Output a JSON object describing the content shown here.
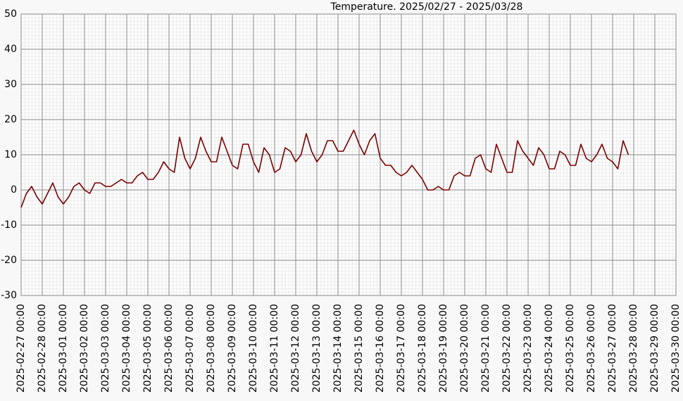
{
  "chart_data": {
    "type": "line",
    "title": "Temperature. 2025/02/27 - 2025/03/28",
    "x": [
      "2025-02-27 00:00",
      "2025-02-27 06:00",
      "2025-02-27 12:00",
      "2025-02-27 18:00",
      "2025-02-28 00:00",
      "2025-02-28 06:00",
      "2025-02-28 12:00",
      "2025-02-28 18:00",
      "2025-03-01 00:00",
      "2025-03-01 06:00",
      "2025-03-01 12:00",
      "2025-03-01 18:00",
      "2025-03-02 00:00",
      "2025-03-02 06:00",
      "2025-03-02 12:00",
      "2025-03-02 18:00",
      "2025-03-03 00:00",
      "2025-03-03 06:00",
      "2025-03-03 12:00",
      "2025-03-03 18:00",
      "2025-03-04 00:00",
      "2025-03-04 06:00",
      "2025-03-04 12:00",
      "2025-03-04 18:00",
      "2025-03-05 00:00",
      "2025-03-05 06:00",
      "2025-03-05 12:00",
      "2025-03-05 18:00",
      "2025-03-06 00:00",
      "2025-03-06 06:00",
      "2025-03-06 12:00",
      "2025-03-06 18:00",
      "2025-03-07 00:00",
      "2025-03-07 06:00",
      "2025-03-07 12:00",
      "2025-03-07 18:00",
      "2025-03-08 00:00",
      "2025-03-08 06:00",
      "2025-03-08 12:00",
      "2025-03-08 18:00",
      "2025-03-09 00:00",
      "2025-03-09 06:00",
      "2025-03-09 12:00",
      "2025-03-09 18:00",
      "2025-03-10 00:00",
      "2025-03-10 06:00",
      "2025-03-10 12:00",
      "2025-03-10 18:00",
      "2025-03-11 00:00",
      "2025-03-11 06:00",
      "2025-03-11 12:00",
      "2025-03-11 18:00",
      "2025-03-12 00:00",
      "2025-03-12 06:00",
      "2025-03-12 12:00",
      "2025-03-12 18:00",
      "2025-03-13 00:00",
      "2025-03-13 06:00",
      "2025-03-13 12:00",
      "2025-03-13 18:00",
      "2025-03-14 00:00",
      "2025-03-14 06:00",
      "2025-03-14 12:00",
      "2025-03-14 18:00",
      "2025-03-15 00:00",
      "2025-03-15 06:00",
      "2025-03-15 12:00",
      "2025-03-15 18:00",
      "2025-03-16 00:00",
      "2025-03-16 06:00",
      "2025-03-16 12:00",
      "2025-03-16 18:00",
      "2025-03-17 00:00",
      "2025-03-17 06:00",
      "2025-03-17 12:00",
      "2025-03-17 18:00",
      "2025-03-18 00:00",
      "2025-03-18 06:00",
      "2025-03-18 12:00",
      "2025-03-18 18:00",
      "2025-03-19 00:00",
      "2025-03-19 06:00",
      "2025-03-19 12:00",
      "2025-03-19 18:00",
      "2025-03-20 00:00",
      "2025-03-20 06:00",
      "2025-03-20 12:00",
      "2025-03-20 18:00",
      "2025-03-21 00:00",
      "2025-03-21 06:00",
      "2025-03-21 12:00",
      "2025-03-21 18:00",
      "2025-03-22 00:00",
      "2025-03-22 06:00",
      "2025-03-22 12:00",
      "2025-03-22 18:00",
      "2025-03-23 00:00",
      "2025-03-23 06:00",
      "2025-03-23 12:00",
      "2025-03-23 18:00",
      "2025-03-24 00:00",
      "2025-03-24 06:00",
      "2025-03-24 12:00",
      "2025-03-24 18:00",
      "2025-03-25 00:00",
      "2025-03-25 06:00",
      "2025-03-25 12:00",
      "2025-03-25 18:00",
      "2025-03-26 00:00",
      "2025-03-26 06:00",
      "2025-03-26 12:00",
      "2025-03-26 18:00",
      "2025-03-27 00:00",
      "2025-03-27 06:00",
      "2025-03-27 12:00",
      "2025-03-27 18:00"
    ],
    "series": [
      {
        "color": "#7a0000",
        "values": [
          -5,
          -1,
          1,
          -2,
          -4,
          -1,
          2,
          -2,
          -4,
          -2,
          1,
          2,
          0,
          -1,
          2,
          2,
          1,
          1,
          2,
          3,
          2,
          2,
          4,
          5,
          3,
          3,
          5,
          8,
          6,
          5,
          15,
          9,
          6,
          9,
          15,
          11,
          8,
          8,
          15,
          11,
          7,
          6,
          13,
          13,
          8,
          5,
          12,
          10,
          5,
          6,
          12,
          11,
          8,
          10,
          16,
          11,
          8,
          10,
          14,
          14,
          11,
          11,
          14,
          17,
          13,
          10,
          14,
          16,
          9,
          7,
          7,
          5,
          4,
          5,
          7,
          5,
          3,
          0,
          0,
          1,
          0,
          0,
          4,
          5,
          4,
          4,
          9,
          10,
          6,
          5,
          13,
          9,
          5,
          5,
          14,
          11,
          9,
          7,
          12,
          10,
          6,
          6,
          11,
          10,
          7,
          7,
          13,
          9,
          8,
          10,
          13,
          9,
          8,
          6,
          14,
          10
        ]
      }
    ],
    "xlim": [
      "2025-02-27 00:00",
      "2025-03-30 00:00"
    ],
    "xticks": [
      "2025-02-27 00:00",
      "2025-02-28 00:00",
      "2025-03-01 00:00",
      "2025-03-02 00:00",
      "2025-03-03 00:00",
      "2025-03-04 00:00",
      "2025-03-05 00:00",
      "2025-03-06 00:00",
      "2025-03-07 00:00",
      "2025-03-08 00:00",
      "2025-03-09 00:00",
      "2025-03-10 00:00",
      "2025-03-11 00:00",
      "2025-03-12 00:00",
      "2025-03-13 00:00",
      "2025-03-14 00:00",
      "2025-03-15 00:00",
      "2025-03-16 00:00",
      "2025-03-17 00:00",
      "2025-03-18 00:00",
      "2025-03-19 00:00",
      "2025-03-20 00:00",
      "2025-03-21 00:00",
      "2025-03-22 00:00",
      "2025-03-23 00:00",
      "2025-03-24 00:00",
      "2025-03-25 00:00",
      "2025-03-26 00:00",
      "2025-03-27 00:00",
      "2025-03-28 00:00",
      "2025-03-29 00:00",
      "2025-03-30 00:00"
    ],
    "ylim": [
      -30,
      50
    ],
    "yticks": [
      -30,
      -20,
      -10,
      0,
      10,
      20,
      30,
      40,
      50
    ],
    "grid": true
  }
}
